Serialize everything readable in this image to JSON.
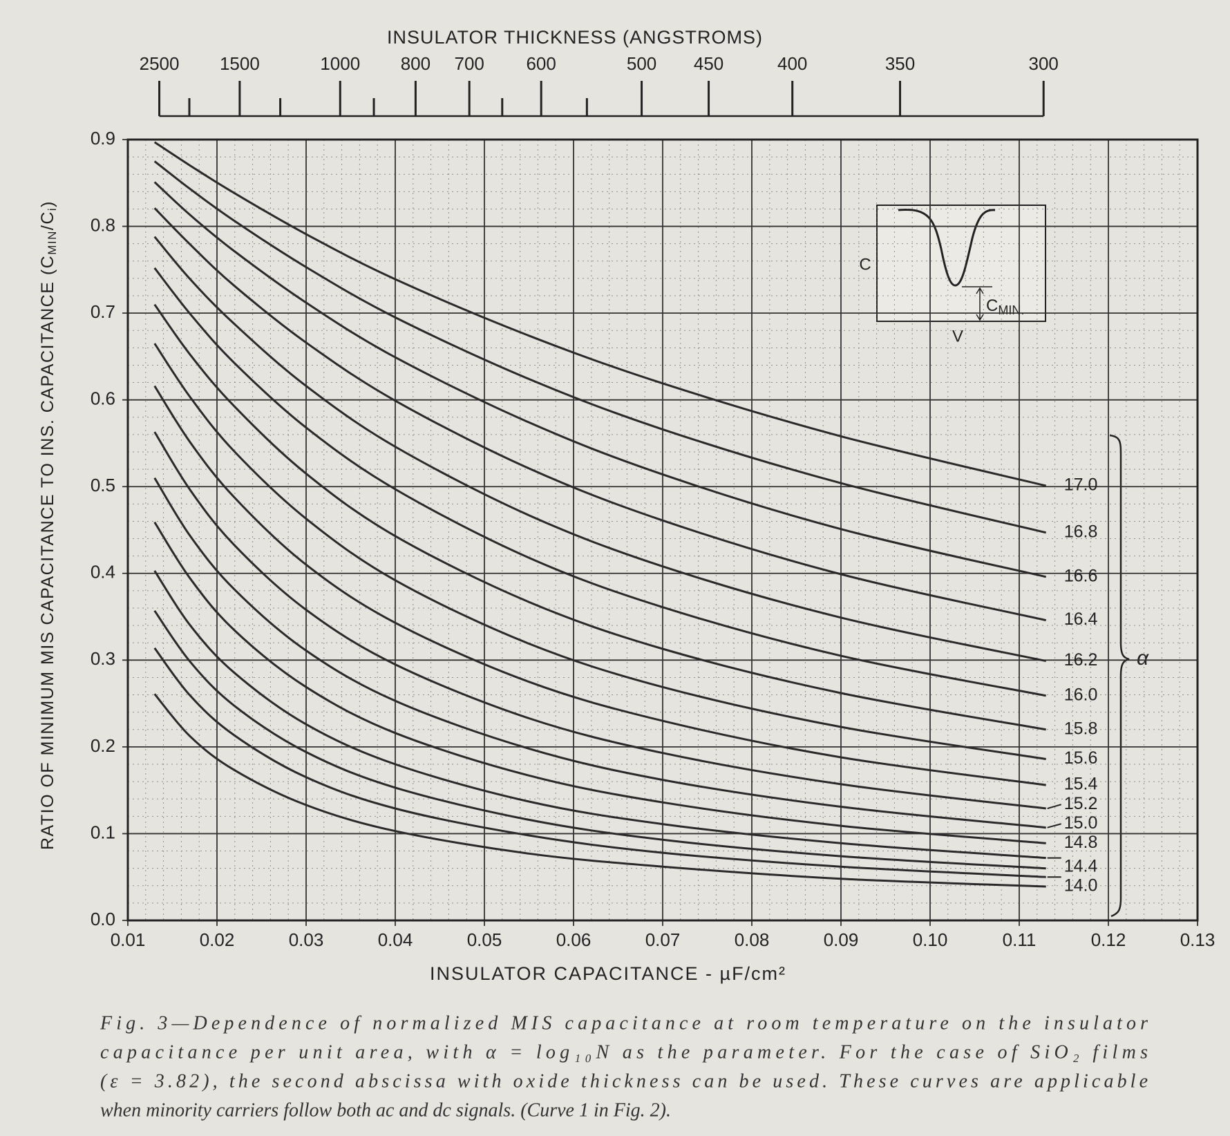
{
  "chart_data": {
    "type": "line",
    "x2label": "INSULATOR THICKNESS (ANGSTROMS)",
    "xlabel": "INSULATOR CAPACITANCE - µF/cm²",
    "ylabel_parts": [
      "RATIO OF MINIMUM MIS CAPACITANCE TO INS. CAPACITANCE (C",
      "MIN",
      "/C",
      "i",
      ")"
    ],
    "x": [
      0.013,
      0.017,
      0.022,
      0.03,
      0.04,
      0.055,
      0.07,
      0.09,
      0.113
    ],
    "color": "#2a2a2a",
    "series": [
      {
        "name": "17.0",
        "values": [
          0.897,
          0.87,
          0.838,
          0.791,
          0.739,
          0.674,
          0.619,
          0.558,
          0.501
        ]
      },
      {
        "name": "16.8",
        "values": [
          0.875,
          0.843,
          0.806,
          0.753,
          0.695,
          0.624,
          0.566,
          0.504,
          0.447
        ]
      },
      {
        "name": "16.6",
        "values": [
          0.851,
          0.813,
          0.771,
          0.712,
          0.649,
          0.574,
          0.514,
          0.451,
          0.396
        ]
      },
      {
        "name": "16.4",
        "values": [
          0.821,
          0.779,
          0.731,
          0.666,
          0.599,
          0.521,
          0.461,
          0.399,
          0.346
        ]
      },
      {
        "name": "16.2",
        "values": [
          0.788,
          0.739,
          0.687,
          0.616,
          0.546,
          0.467,
          0.408,
          0.349,
          0.299
        ]
      },
      {
        "name": "16.0",
        "values": [
          0.752,
          0.699,
          0.642,
          0.568,
          0.497,
          0.418,
          0.361,
          0.305,
          0.259
        ]
      },
      {
        "name": "15.8",
        "values": [
          0.71,
          0.652,
          0.592,
          0.515,
          0.443,
          0.367,
          0.313,
          0.262,
          0.22
        ]
      },
      {
        "name": "15.6",
        "values": [
          0.665,
          0.603,
          0.54,
          0.463,
          0.392,
          0.319,
          0.269,
          0.223,
          0.186
        ]
      },
      {
        "name": "15.4",
        "values": [
          0.616,
          0.551,
          0.487,
          0.41,
          0.343,
          0.275,
          0.23,
          0.188,
          0.156
        ]
      },
      {
        "name": "15.2",
        "values": [
          0.563,
          0.496,
          0.432,
          0.358,
          0.295,
          0.233,
          0.193,
          0.157,
          0.129
        ]
      },
      {
        "name": "15.0",
        "values": [
          0.51,
          0.443,
          0.381,
          0.311,
          0.253,
          0.198,
          0.162,
          0.131,
          0.107
        ]
      },
      {
        "name": "14.8",
        "values": [
          0.459,
          0.394,
          0.334,
          0.269,
          0.216,
          0.167,
          0.136,
          0.109,
          0.089
        ]
      },
      {
        "name": null,
        "values": [
          0.403,
          0.34,
          0.285,
          0.226,
          0.18,
          0.137,
          0.111,
          0.089,
          0.072
        ]
      },
      {
        "name": "14.4",
        "values": [
          0.357,
          0.298,
          0.247,
          0.194,
          0.153,
          0.116,
          0.093,
          0.074,
          0.06
        ]
      },
      {
        "name": null,
        "values": [
          0.314,
          0.259,
          0.213,
          0.165,
          0.129,
          0.098,
          0.078,
          0.062,
          0.05
        ]
      },
      {
        "name": "14.0",
        "values": [
          0.261,
          0.212,
          0.173,
          0.133,
          0.103,
          0.077,
          0.062,
          0.048,
          0.039
        ]
      }
    ],
    "legend_label": "α",
    "xlim": [
      0.01,
      0.13
    ],
    "xticks": [
      0.01,
      0.02,
      0.03,
      0.04,
      0.05,
      0.06,
      0.07,
      0.08,
      0.09,
      {
        "value": 0.1,
        "label": "0.10"
      },
      0.11,
      0.12,
      0.13
    ],
    "ylim": [
      0,
      0.9
    ],
    "yticks": [
      {
        "value": 0,
        "label": "0.0"
      },
      0.1,
      0.2,
      0.3,
      0.4,
      0.5,
      0.6,
      0.7,
      0.8,
      0.9
    ],
    "x2ticks": [
      {
        "value": 0.01353,
        "label": "2500"
      },
      {
        "value": 0.02255,
        "label": "1500"
      },
      {
        "value": 0.03382,
        "label": "1000"
      },
      {
        "value": 0.04228,
        "label": "800"
      },
      {
        "value": 0.04831,
        "label": "700"
      },
      {
        "value": 0.05637,
        "label": "600"
      },
      {
        "value": 0.06764,
        "label": "500"
      },
      {
        "value": 0.07516,
        "label": "450"
      },
      {
        "value": 0.08455,
        "label": "400"
      },
      {
        "value": 0.09663,
        "label": "350"
      },
      {
        "value": 0.11273,
        "label": "300"
      }
    ],
    "x2_minor_ticks": [
      0.0169,
      0.0271,
      0.0376,
      0.052,
      0.0615
    ],
    "grid": true,
    "minor_grid": true
  },
  "inset": {
    "ylabel": "C",
    "xlabel": "V",
    "cmin": [
      "C",
      "MIN."
    ]
  },
  "caption": [
    "Fig. 3—Dependence of normalized MIS capacitance at room temperature on the insulator",
    "capacitance per unit area, with α = log₁₀N as the parameter. For the case of SiO₂ films",
    "(ε = 3.82), the second abscissa with oxide thickness can be used. These curves are applicable",
    "when minority carriers follow both ac and dc signals. (Curve 1 in Fig. 2)."
  ]
}
